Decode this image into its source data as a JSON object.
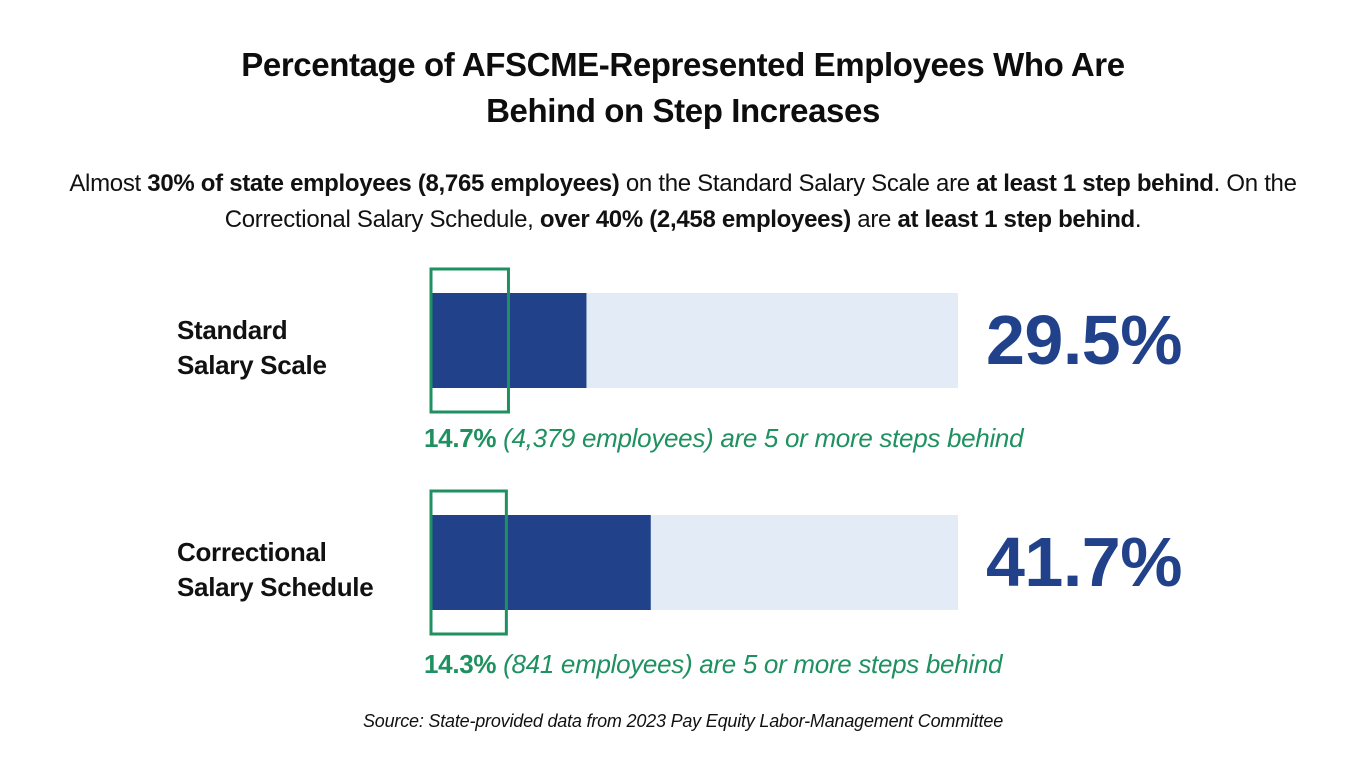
{
  "title": {
    "line1": "Percentage of AFSCME-Represented Employees Who Are",
    "line2": "Behind on Step Increases"
  },
  "summary": {
    "s1": "Almost ",
    "b1": "30% of state employees (8,765 employees)",
    "s2": " on the Standard Salary Scale are ",
    "b2": "at least 1 step behind",
    "s3": ". On the Correctional Salary Schedule, ",
    "b3": "over 40% (2,458 employees)",
    "s4": " are ",
    "b4": "at least 1 step behind",
    "s5": "."
  },
  "colors": {
    "bar": "#21428a",
    "track": "#e3ebf7",
    "highlight": "#1f9160",
    "value_text": "#21428a"
  },
  "chart_data": {
    "type": "bar",
    "orientation": "horizontal",
    "xlim": [
      0,
      100
    ],
    "categories": [
      {
        "line1": "Standard",
        "line2": "Salary Scale"
      },
      {
        "line1": "Correctional",
        "line2": "Salary Schedule"
      }
    ],
    "series": [
      {
        "name": "at least 1 step behind",
        "values": [
          29.5,
          41.7
        ]
      },
      {
        "name": "5 or more steps behind",
        "values": [
          14.7,
          14.3
        ]
      }
    ],
    "value_labels": [
      "29.5%",
      "41.7%"
    ],
    "notes": [
      {
        "pct": "14.7%",
        "text": " (4,379 employees) are 5 or more steps behind"
      },
      {
        "pct": "14.3%",
        "text": " (841 employees) are 5 or more steps behind"
      }
    ]
  },
  "source": "Source: State-provided data from 2023 Pay Equity Labor-Management Committee"
}
